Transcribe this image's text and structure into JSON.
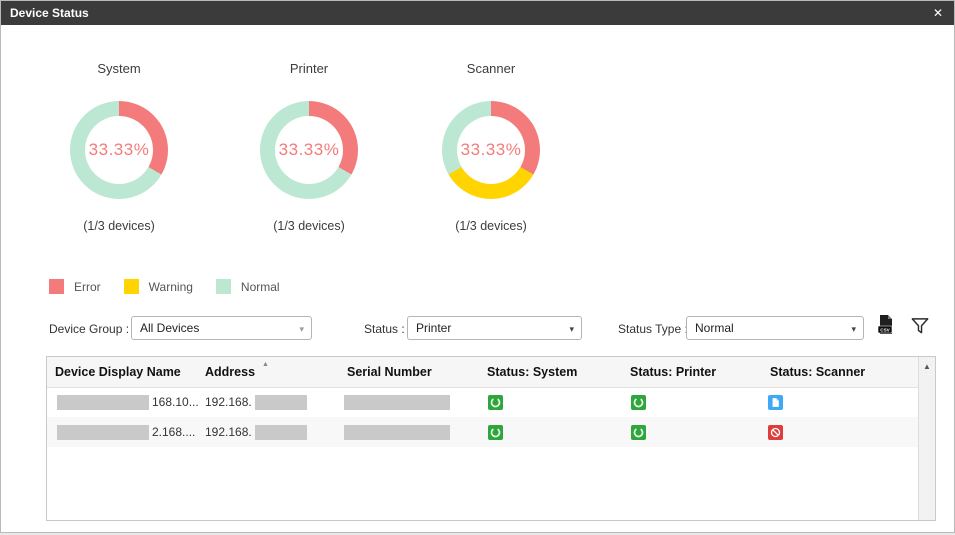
{
  "window": {
    "title": "Device Status"
  },
  "icons": {
    "close": "✕",
    "dropdown_arrow": "▾",
    "sort_ascending": "▲",
    "scroll_up": "▲"
  },
  "colors": {
    "titlebar": "#3B3B3B",
    "error": "#F47B7B",
    "warning": "#FFD400",
    "normal": "#BCE7D3",
    "center_text": "#F47B7B",
    "status_ok_green": "#2FA63C",
    "status_doc_blue": "#3FA9F5",
    "status_error_red": "#E03C3C",
    "redaction_gray": "#C9C9C9"
  },
  "chart_data": [
    {
      "type": "pie",
      "title": "System",
      "center_label": "33.33%",
      "caption": "(1/3 devices)",
      "segments": [
        {
          "label": "Error",
          "value": 33.33
        },
        {
          "label": "Normal",
          "value": 66.67
        }
      ]
    },
    {
      "type": "pie",
      "title": "Printer",
      "center_label": "33.33%",
      "caption": "(1/3 devices)",
      "segments": [
        {
          "label": "Error",
          "value": 33.33
        },
        {
          "label": "Normal",
          "value": 66.67
        }
      ]
    },
    {
      "type": "pie",
      "title": "Scanner",
      "center_label": "33.33%",
      "caption": "(1/3 devices)",
      "segments": [
        {
          "label": "Error",
          "value": 33.33
        },
        {
          "label": "Warning",
          "value": 33.34
        },
        {
          "label": "Normal",
          "value": 33.33
        }
      ]
    }
  ],
  "legend": [
    {
      "label": "Error",
      "color": "#F47B7B"
    },
    {
      "label": "Warning",
      "color": "#FFD400"
    },
    {
      "label": "Normal",
      "color": "#BCE7D3"
    }
  ],
  "filters": {
    "device_group": {
      "label": "Device Group :",
      "value": "All Devices"
    },
    "status": {
      "label": "Status :",
      "value": "Printer"
    },
    "status_type": {
      "label": "Status Type :",
      "value": "Normal"
    }
  },
  "toolbar": {
    "export_csv_label": "CSV"
  },
  "table": {
    "columns": [
      "Device Display Name",
      "Address",
      "Serial Number",
      "Status: System",
      "Status: Printer",
      "Status: Scanner"
    ],
    "sorted_column": "Address",
    "sort_direction": "ascending",
    "rows": [
      {
        "display_name_redacted": true,
        "display_name_visible": "168.10...",
        "address_visible": "192.168.",
        "address_redacted": true,
        "serial_redacted": true,
        "status_system": "ok",
        "status_printer": "ok",
        "status_scanner": "doc"
      },
      {
        "display_name_redacted": true,
        "display_name_visible": "2.168....",
        "address_visible": "192.168.",
        "address_redacted": true,
        "serial_redacted": true,
        "status_system": "ok",
        "status_printer": "ok",
        "status_scanner": "error"
      }
    ]
  }
}
